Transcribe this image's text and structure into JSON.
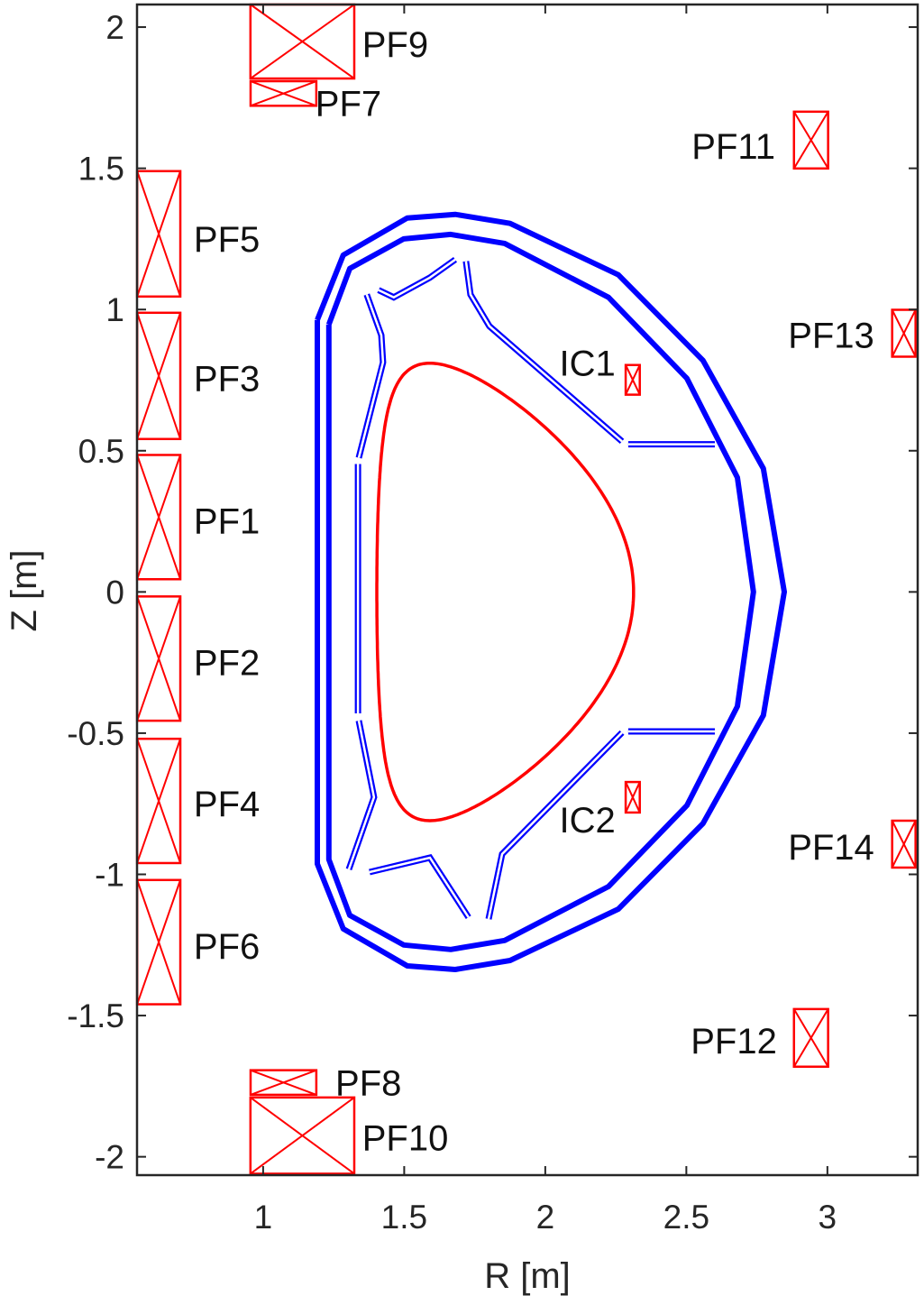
{
  "chart_data": {
    "type": "diagram-plot",
    "xlabel": "R [m]",
    "ylabel": "Z [m]",
    "xlim": [
      0.553,
      3.32
    ],
    "ylim": [
      -2.065,
      2.08
    ],
    "xticks": [
      1,
      1.5,
      2,
      2.5,
      3
    ],
    "xtick_labels": [
      "1",
      "1.5",
      "2",
      "2.5",
      "3"
    ],
    "yticks": [
      -2,
      -1.5,
      -1,
      -0.5,
      0,
      0.5,
      1,
      1.5,
      2
    ],
    "ytick_labels": [
      "-2",
      "-1.5",
      "-1",
      "-0.5",
      "0",
      "0.5",
      "1",
      "1.5",
      "2"
    ],
    "grid": false,
    "colors": {
      "coil": "#ff0000",
      "plasma": "#ff0000",
      "vessel": "#0000ff",
      "axes": "#262626"
    },
    "coils": [
      {
        "name": "PF9",
        "r": 1.139,
        "z": 1.949,
        "dr": 0.368,
        "dz": 0.262,
        "label_r": 1.351,
        "label_z": 1.94,
        "anchor": "start"
      },
      {
        "name": "PF7",
        "r": 1.072,
        "z": 1.765,
        "dr": 0.233,
        "dz": 0.087,
        "label_r": 1.185,
        "label_z": 1.73,
        "anchor": "start"
      },
      {
        "name": "PF5",
        "r": 0.63,
        "z": 1.268,
        "dr": 0.153,
        "dz": 0.444,
        "label_r": 0.754,
        "label_z": 1.25,
        "anchor": "start"
      },
      {
        "name": "PF3",
        "r": 0.63,
        "z": 0.765,
        "dr": 0.153,
        "dz": 0.447,
        "label_r": 0.754,
        "label_z": 0.756,
        "anchor": "start"
      },
      {
        "name": "PF1",
        "r": 0.63,
        "z": 0.265,
        "dr": 0.153,
        "dz": 0.44,
        "label_r": 0.754,
        "label_z": 0.252,
        "anchor": "start"
      },
      {
        "name": "PF2",
        "r": 0.63,
        "z": -0.236,
        "dr": 0.153,
        "dz": 0.44,
        "label_r": 0.754,
        "label_z": -0.249,
        "anchor": "start"
      },
      {
        "name": "PF4",
        "r": 0.63,
        "z": -0.74,
        "dr": 0.153,
        "dz": 0.44,
        "label_r": 0.754,
        "label_z": -0.75,
        "anchor": "start"
      },
      {
        "name": "PF6",
        "r": 0.63,
        "z": -1.24,
        "dr": 0.153,
        "dz": 0.44,
        "label_r": 0.754,
        "label_z": -1.254,
        "anchor": "start"
      },
      {
        "name": "PF8",
        "r": 1.072,
        "z": -1.737,
        "dr": 0.233,
        "dz": 0.087,
        "label_r": 1.256,
        "label_z": -1.738,
        "anchor": "start"
      },
      {
        "name": "PF10",
        "r": 1.139,
        "z": -1.925,
        "dr": 0.368,
        "dz": 0.27,
        "label_r": 1.351,
        "label_z": -1.933,
        "anchor": "start"
      },
      {
        "name": "PF11",
        "r": 2.942,
        "z": 1.6,
        "dr": 0.121,
        "dz": 0.201,
        "label_r": 2.815,
        "label_z": 1.579,
        "anchor": "end"
      },
      {
        "name": "PF13",
        "r": 3.271,
        "z": 0.916,
        "dr": 0.083,
        "dz": 0.166,
        "label_r": 3.166,
        "label_z": 0.909,
        "anchor": "end"
      },
      {
        "name": "PF14",
        "r": 3.271,
        "z": -0.893,
        "dr": 0.083,
        "dz": 0.166,
        "label_r": 3.166,
        "label_z": -0.903,
        "anchor": "end"
      },
      {
        "name": "PF12",
        "r": 2.942,
        "z": -1.579,
        "dr": 0.121,
        "dz": 0.204,
        "label_r": 2.821,
        "label_z": -1.589,
        "anchor": "end"
      },
      {
        "name": "IC1",
        "r": 2.31,
        "z": 0.751,
        "dr": 0.05,
        "dz": 0.105,
        "label_r": 2.249,
        "label_z": 0.81,
        "anchor": "end"
      },
      {
        "name": "IC2",
        "r": 2.31,
        "z": -0.727,
        "dr": 0.05,
        "dz": 0.108,
        "label_r": 2.249,
        "label_z": -0.807,
        "anchor": "end"
      }
    ],
    "vessel_outer_upper": [
      [
        1.192,
        0.963
      ],
      [
        1.284,
        1.193
      ],
      [
        1.511,
        1.324
      ],
      [
        1.681,
        1.337
      ],
      [
        1.875,
        1.305
      ],
      [
        2.259,
        1.123
      ],
      [
        2.559,
        0.82
      ],
      [
        2.773,
        0.437
      ],
      [
        2.847,
        0
      ]
    ],
    "vessel_inner_upper": [
      [
        1.233,
        0.947
      ],
      [
        1.307,
        1.145
      ],
      [
        1.498,
        1.25
      ],
      [
        1.665,
        1.266
      ],
      [
        1.856,
        1.234
      ],
      [
        2.224,
        1.043
      ],
      [
        2.502,
        0.756
      ],
      [
        2.681,
        0.405
      ],
      [
        2.738,
        0
      ]
    ],
    "first_wall_segments": [
      [
        [
          1.367,
          1.053
        ],
        [
          1.419,
          0.909
        ],
        [
          1.425,
          0.813
        ],
        [
          1.339,
          0.475
        ]
      ],
      [
        [
          1.336,
          0.453
        ],
        [
          1.336,
          -0.43
        ]
      ],
      [
        [
          1.339,
          -0.456
        ],
        [
          1.393,
          -0.727
        ],
        [
          1.304,
          -0.982
        ]
      ],
      [
        [
          1.409,
          1.069
        ],
        [
          1.463,
          1.043
        ],
        [
          1.591,
          1.113
        ],
        [
          1.681,
          1.177
        ]
      ],
      [
        [
          1.719,
          1.171
        ],
        [
          1.735,
          1.053
        ],
        [
          1.802,
          0.941
        ],
        [
          2.272,
          0.533
        ]
      ],
      [
        [
          2.294,
          0.523
        ],
        [
          2.601,
          0.523
        ]
      ],
      [
        [
          1.377,
          -0.992
        ],
        [
          1.591,
          -0.941
        ],
        [
          1.728,
          -1.152
        ]
      ],
      [
        [
          1.799,
          -1.158
        ],
        [
          1.847,
          -0.928
        ],
        [
          2.272,
          -0.498
        ]
      ],
      [
        [
          2.294,
          -0.494
        ],
        [
          2.601,
          -0.494
        ]
      ]
    ],
    "plasma_boundary": {
      "r0": 1.858,
      "a": 0.455,
      "elongation": 1.78,
      "triangularity": 0.587
    }
  }
}
